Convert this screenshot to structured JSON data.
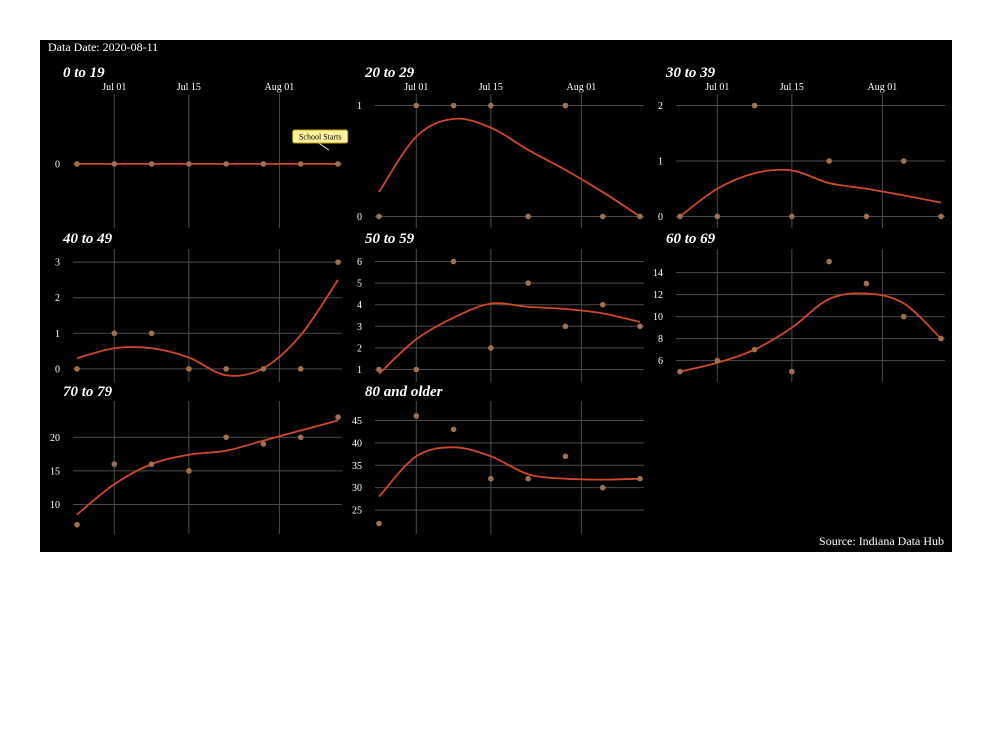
{
  "header": {
    "data_date": "Data Date: 2020-08-11"
  },
  "footer": {
    "source": "Source: Indiana Data Hub"
  },
  "colors": {
    "background": "#000000",
    "line": "#d0482a",
    "point": "#a0714f",
    "grid": "#4a4a4a",
    "text": "#ffffff",
    "annotation_fill": "#fff3a0",
    "annotation_border": "#c8a000"
  },
  "chart_data": {
    "type": "scatter",
    "smoothing": "loess",
    "x_dates": [
      "2020-06-24",
      "2020-07-01",
      "2020-07-08",
      "2020-07-15",
      "2020-07-22",
      "2020-07-29",
      "2020-08-05",
      "2020-08-12"
    ],
    "date_ticks": [
      "Jul 01",
      "Jul 15",
      "Aug 01"
    ],
    "annotation": {
      "panel": "0 to 19",
      "text": "School Starts"
    },
    "panels": [
      {
        "title": "0 to 19",
        "values": [
          0,
          0,
          0,
          0,
          0,
          0,
          0,
          0
        ],
        "trend": [
          0,
          0,
          0,
          0,
          0,
          0,
          0,
          0
        ],
        "yticks": [
          0
        ],
        "ylim": [
          -1,
          1.1
        ],
        "show_date_ticks": true
      },
      {
        "title": "20 to 29",
        "values": [
          0,
          1,
          1,
          1,
          0,
          1,
          0,
          0
        ],
        "trend": [
          0.22,
          0.72,
          0.88,
          0.8,
          0.6,
          0.42,
          0.22,
          0
        ],
        "yticks": [
          0,
          1
        ],
        "ylim": [
          -0.05,
          1.05
        ],
        "show_date_ticks": true
      },
      {
        "title": "30 to 39",
        "values": [
          0,
          0,
          2,
          0,
          1,
          0,
          1,
          0
        ],
        "trend": [
          0,
          0.5,
          0.78,
          0.83,
          0.6,
          0.5,
          0.38,
          0.25
        ],
        "yticks": [
          0,
          1,
          2
        ],
        "ylim": [
          -0.1,
          2.1
        ],
        "show_date_ticks": true
      },
      {
        "title": "40 to 49",
        "values": [
          0,
          1,
          1,
          0,
          0,
          0,
          0,
          3
        ],
        "trend": [
          0.3,
          0.58,
          0.58,
          0.32,
          -0.18,
          0.02,
          0.95,
          2.5
        ],
        "yticks": [
          0,
          1,
          2,
          3
        ],
        "ylim": [
          -0.2,
          3.2
        ],
        "show_date_ticks": false
      },
      {
        "title": "50 to 59",
        "values": [
          1,
          1,
          6,
          2,
          5,
          3,
          4,
          3
        ],
        "trend": [
          0.8,
          2.4,
          3.4,
          4.05,
          3.9,
          3.8,
          3.6,
          3.2
        ],
        "yticks": [
          1,
          2,
          3,
          4,
          5,
          6
        ],
        "ylim": [
          0.7,
          6.3
        ],
        "show_date_ticks": false
      },
      {
        "title": "60 to 69",
        "values": [
          5,
          6,
          7,
          5,
          15,
          13,
          10,
          8
        ],
        "trend": [
          5,
          5.8,
          7,
          9,
          11.6,
          12.1,
          11.2,
          8
        ],
        "yticks": [
          6,
          8,
          10,
          12,
          14
        ],
        "ylim": [
          4.6,
          15.6
        ],
        "show_date_ticks": false
      },
      {
        "title": "70 to 79",
        "values": [
          7,
          16,
          16,
          15,
          20,
          19,
          20,
          23
        ],
        "trend": [
          8.5,
          13,
          16,
          17.4,
          18,
          19.5,
          21,
          22.5
        ],
        "yticks": [
          10,
          15,
          20
        ],
        "ylim": [
          6.5,
          24.5
        ],
        "show_date_ticks": false
      },
      {
        "title": "80 and older",
        "values": [
          22,
          46,
          43,
          32,
          32,
          37,
          30,
          32
        ],
        "trend": [
          28,
          37,
          39,
          37,
          33,
          32,
          31.8,
          32
        ],
        "yticks": [
          25,
          30,
          35,
          40,
          45
        ],
        "ylim": [
          21,
          48
        ],
        "show_date_ticks": false
      }
    ]
  }
}
